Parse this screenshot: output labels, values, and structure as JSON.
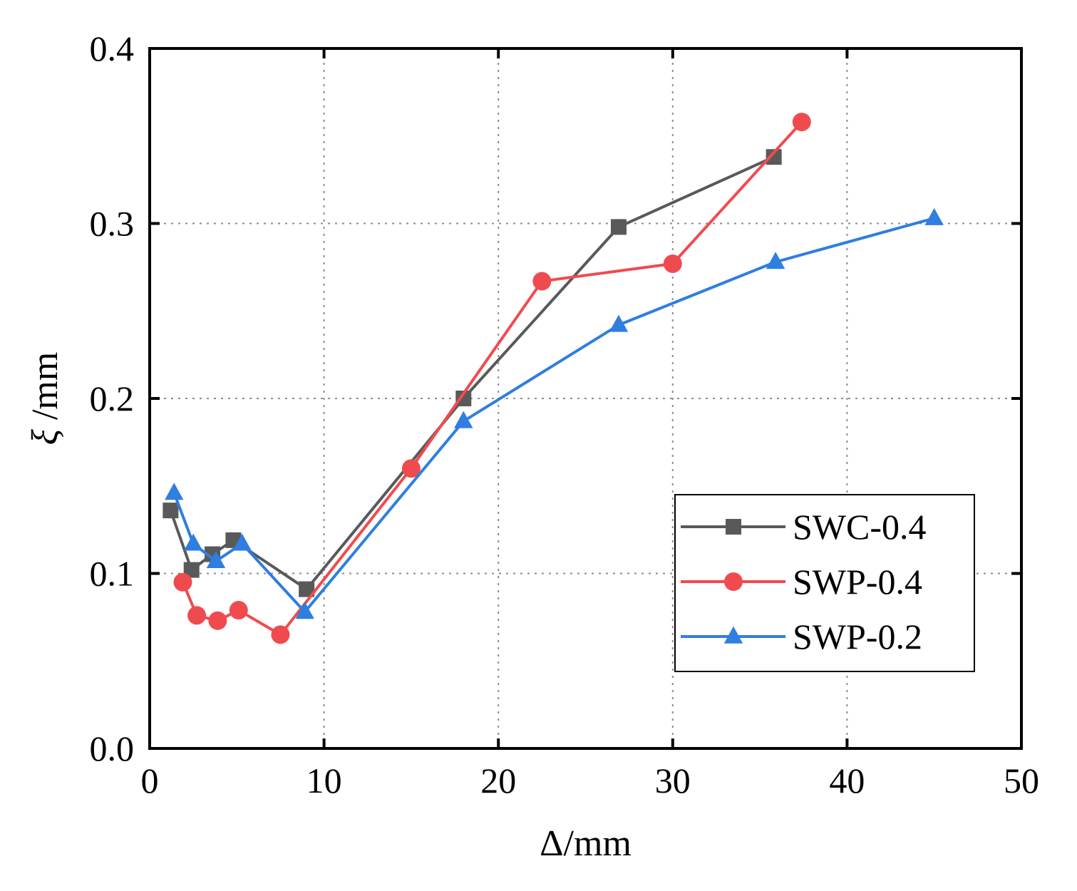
{
  "chart_data": {
    "type": "line",
    "title": "",
    "xlabel": "Δ/mm",
    "ylabel_symbol": "ξ",
    "ylabel_unit": " /mm",
    "xlim": [
      0,
      50
    ],
    "ylim": [
      0,
      0.4
    ],
    "xticks": [
      0,
      10,
      20,
      30,
      40,
      50
    ],
    "xtick_labels": [
      "0",
      "10",
      "20",
      "30",
      "40",
      "50"
    ],
    "yticks": [
      0.0,
      0.1,
      0.2,
      0.3,
      0.4
    ],
    "ytick_labels": [
      "0.0",
      "0.1",
      "0.2",
      "0.3",
      "0.4"
    ],
    "grid": true,
    "legend_position": "lower-right",
    "series": [
      {
        "name": "SWC-0.4",
        "color": "#595959",
        "marker": "square",
        "x": [
          1.2,
          2.4,
          3.6,
          4.8,
          9.0,
          18.0,
          26.9,
          35.8
        ],
        "y": [
          0.136,
          0.102,
          0.111,
          0.119,
          0.091,
          0.2,
          0.298,
          0.338
        ]
      },
      {
        "name": "SWP-0.4",
        "color": "#ef4b4f",
        "marker": "circle",
        "x": [
          1.9,
          2.7,
          3.9,
          5.1,
          7.5,
          15.0,
          22.5,
          30.0,
          37.4
        ],
        "y": [
          0.095,
          0.076,
          0.073,
          0.079,
          0.065,
          0.16,
          0.267,
          0.277,
          0.358
        ]
      },
      {
        "name": "SWP-0.2",
        "color": "#2f7ee0",
        "marker": "triangle",
        "x": [
          1.4,
          2.5,
          3.8,
          5.3,
          8.9,
          18.0,
          26.9,
          35.9,
          45.0
        ],
        "y": [
          0.146,
          0.117,
          0.107,
          0.117,
          0.078,
          0.187,
          0.242,
          0.278,
          0.303
        ]
      }
    ]
  }
}
